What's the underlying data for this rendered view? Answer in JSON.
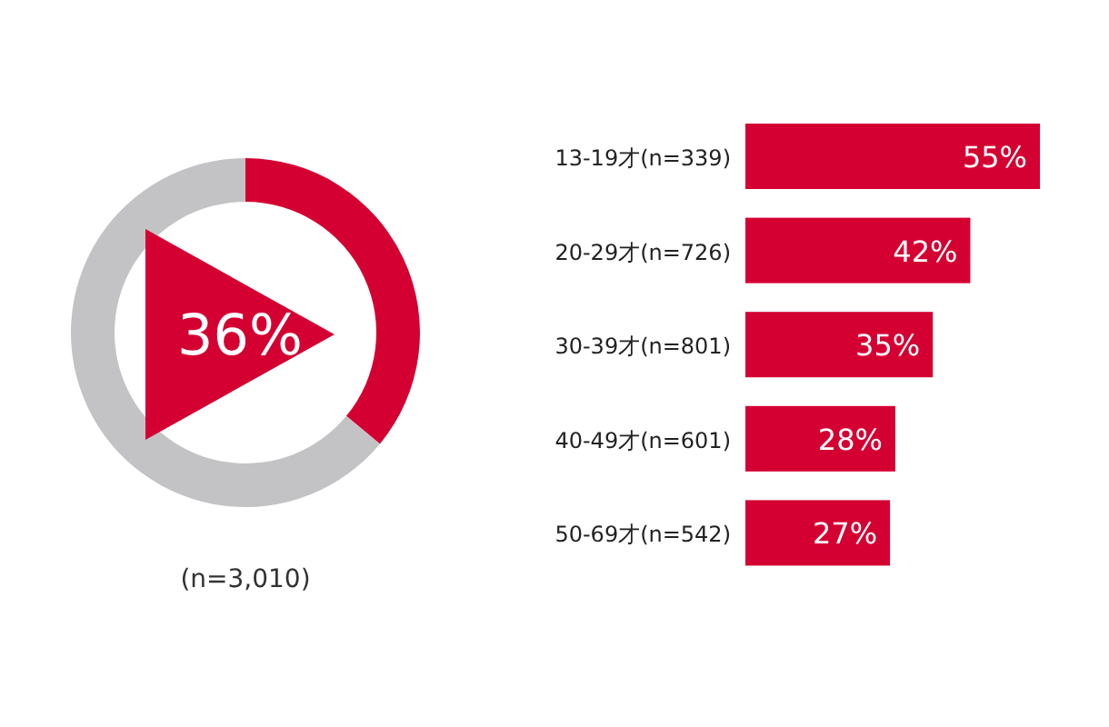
{
  "chart_data": [
    {
      "type": "donut",
      "categories": [
        null,
        null
      ],
      "values": [
        36,
        64
      ],
      "colors": [
        "#d40032",
        "#c3c3c6"
      ],
      "annotations": [
        "36%",
        "(n=3,010)"
      ]
    },
    {
      "type": "bar",
      "orientation": "horizontal",
      "categories": [
        "13-19才(n=339)",
        "20-29才(n=726)",
        "30-39才(n=801)",
        "40-49才(n=601)",
        "50-69才(n=542)"
      ],
      "values": [
        55,
        42,
        35,
        28,
        27
      ],
      "value_labels": [
        "55%",
        "42%",
        "35%",
        "28%",
        "27%"
      ],
      "color": "#d40032"
    }
  ]
}
